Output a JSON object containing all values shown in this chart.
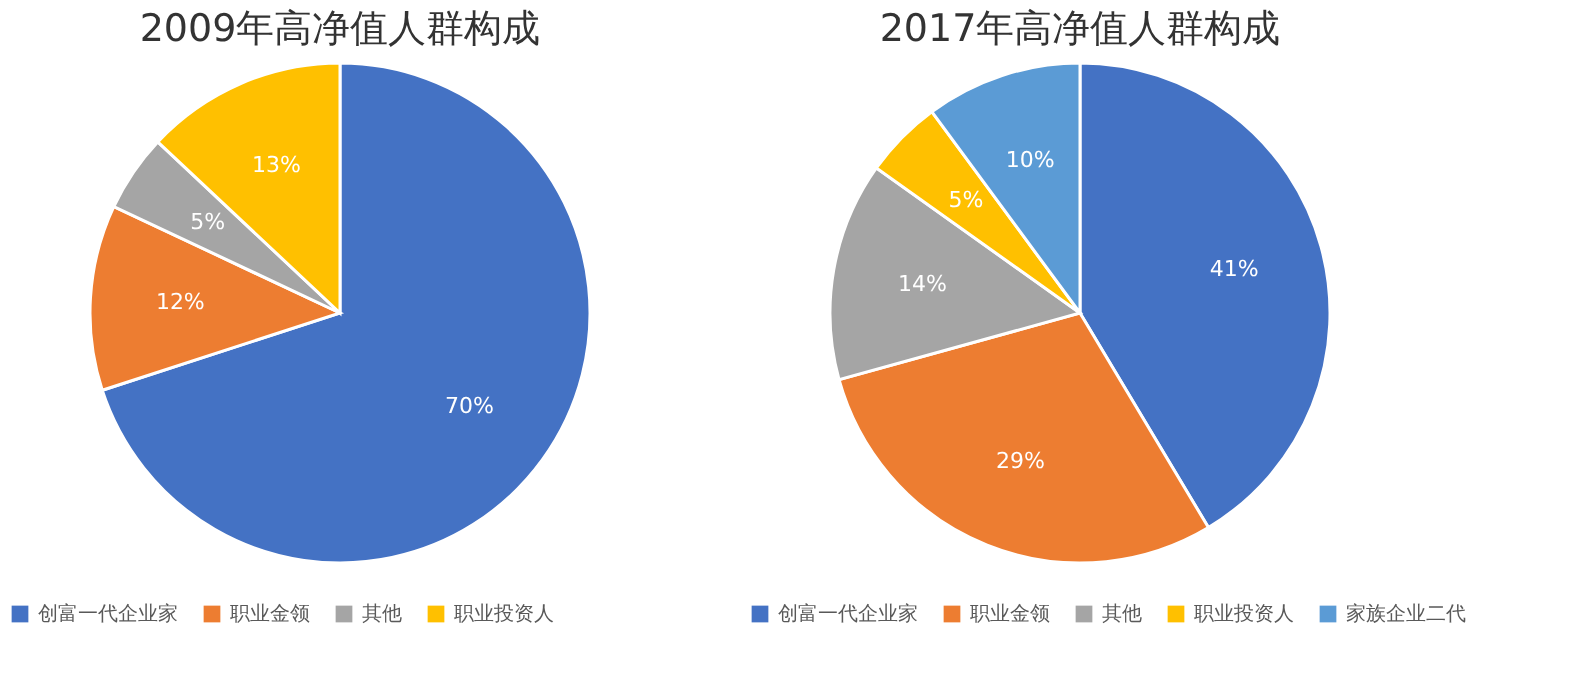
{
  "chart_data": [
    {
      "type": "pie",
      "title": "2009年高净值人群构成",
      "categories": [
        "创富一代企业家",
        "职业金领",
        "其他",
        "职业投资人"
      ],
      "values": [
        70,
        12,
        5,
        13
      ],
      "value_labels": [
        "70%",
        "12%",
        "5%",
        "13%"
      ],
      "colors": [
        "#4472c4",
        "#ed7d31",
        "#a5a5a5",
        "#ffc000"
      ],
      "legend": "bottom"
    },
    {
      "type": "pie",
      "title": "2017年高净值人群构成",
      "categories": [
        "创富一代企业家",
        "职业金领",
        "其他",
        "职业投资人",
        "家族企业二代"
      ],
      "values": [
        41,
        29,
        14,
        5,
        10
      ],
      "value_labels": [
        "41%",
        "29%",
        "14%",
        "5%",
        "10%"
      ],
      "colors": [
        "#4472c4",
        "#ed7d31",
        "#a5a5a5",
        "#ffc000",
        "#5b9bd5"
      ],
      "legend": "bottom"
    }
  ]
}
